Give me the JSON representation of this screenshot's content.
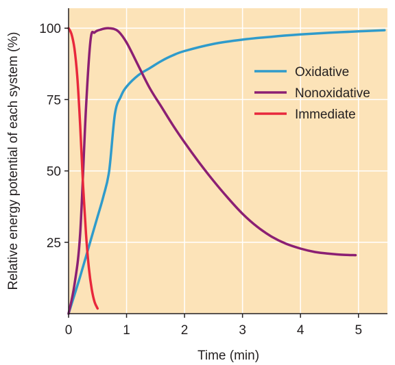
{
  "chart_data": {
    "type": "line",
    "xlabel": "Time (min)",
    "ylabel": "Relative energy potential of each system (%)",
    "xlim": [
      0,
      5.5
    ],
    "ylim": [
      0,
      107
    ],
    "x_ticks": [
      0,
      1,
      2,
      3,
      4,
      5
    ],
    "x_tick_labels": [
      "0",
      "1",
      "2",
      "3",
      "4",
      "5"
    ],
    "y_ticks": [
      25,
      50,
      75,
      100
    ],
    "y_tick_labels": [
      "25",
      "50",
      "75",
      "100"
    ],
    "grid": true,
    "background_color": "#fce3b8",
    "grid_color": "#ffffff",
    "legend_position": "upper-right",
    "series": [
      {
        "name": "Oxidative",
        "color": "#2f9bcb",
        "points": [
          [
            0,
            0
          ],
          [
            0.1,
            6.5
          ],
          [
            0.2,
            13
          ],
          [
            0.3,
            20
          ],
          [
            0.4,
            27
          ],
          [
            0.5,
            34
          ],
          [
            0.6,
            41
          ],
          [
            0.7,
            50
          ],
          [
            0.8,
            70
          ],
          [
            0.9,
            76
          ],
          [
            1.0,
            79.5
          ],
          [
            1.2,
            83.5
          ],
          [
            1.4,
            86
          ],
          [
            1.6,
            88.5
          ],
          [
            1.8,
            90.5
          ],
          [
            2.0,
            92
          ],
          [
            2.5,
            94.5
          ],
          [
            3.0,
            96
          ],
          [
            3.5,
            97
          ],
          [
            4.0,
            97.8
          ],
          [
            4.5,
            98.4
          ],
          [
            5.0,
            98.9
          ],
          [
            5.45,
            99.3
          ]
        ]
      },
      {
        "name": "Nonoxidative",
        "color": "#8b1f73",
        "points": [
          [
            0,
            0
          ],
          [
            0.1,
            10
          ],
          [
            0.2,
            28
          ],
          [
            0.3,
            72
          ],
          [
            0.38,
            96
          ],
          [
            0.45,
            98.5
          ],
          [
            0.55,
            99.5
          ],
          [
            0.7,
            100
          ],
          [
            0.85,
            99
          ],
          [
            1.0,
            95
          ],
          [
            1.2,
            87
          ],
          [
            1.4,
            79
          ],
          [
            1.6,
            72.5
          ],
          [
            1.8,
            66
          ],
          [
            2.0,
            60
          ],
          [
            2.25,
            53
          ],
          [
            2.5,
            46.5
          ],
          [
            2.75,
            40.5
          ],
          [
            3.0,
            35
          ],
          [
            3.25,
            30.5
          ],
          [
            3.5,
            27
          ],
          [
            3.75,
            24.5
          ],
          [
            4.0,
            22.8
          ],
          [
            4.25,
            21.6
          ],
          [
            4.5,
            21
          ],
          [
            4.75,
            20.6
          ],
          [
            4.95,
            20.5
          ]
        ]
      },
      {
        "name": "Immediate",
        "color": "#e8283c",
        "points": [
          [
            0,
            100
          ],
          [
            0.05,
            98
          ],
          [
            0.1,
            93
          ],
          [
            0.15,
            83
          ],
          [
            0.2,
            66
          ],
          [
            0.25,
            45
          ],
          [
            0.3,
            28
          ],
          [
            0.35,
            16
          ],
          [
            0.4,
            8.5
          ],
          [
            0.45,
            4
          ],
          [
            0.5,
            1.8
          ]
        ]
      }
    ]
  }
}
